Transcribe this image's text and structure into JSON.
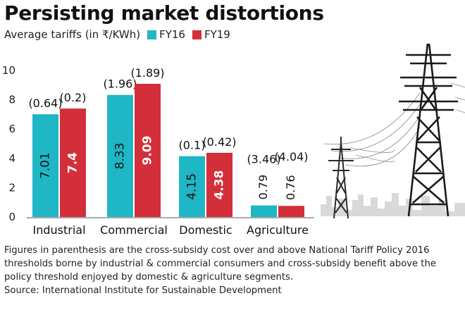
{
  "title": "Persisting market distortions",
  "legend": {
    "prefix": "Average tariffs (in ₹/KWh)",
    "items": [
      {
        "label": "FY16",
        "color": "#1fb6c6"
      },
      {
        "label": "FY19",
        "color": "#d32f3a"
      }
    ]
  },
  "chart_data": {
    "type": "bar",
    "categories": [
      "Industrial",
      "Commercial",
      "Domestic",
      "Agriculture"
    ],
    "series": [
      {
        "name": "FY16",
        "color": "#1fb6c6",
        "values": [
          7.01,
          8.33,
          4.15,
          0.79
        ],
        "labels": [
          "7.01",
          "8.33",
          "4.15",
          "0.79"
        ],
        "annotations": [
          "(0.64)",
          "(1.96)",
          "(0.1)",
          "(3.46)"
        ]
      },
      {
        "name": "FY19",
        "color": "#d32f3a",
        "values": [
          7.4,
          9.09,
          4.38,
          0.76
        ],
        "labels": [
          "7.4",
          "9.09",
          "4.38",
          "0.76"
        ],
        "annotations": [
          "(0.2)",
          "(1.89)",
          "(0.42)",
          "(4.04)"
        ]
      }
    ],
    "ylim": [
      0,
      10
    ],
    "yticks": [
      "0",
      "2",
      "4",
      "6",
      "8",
      "10"
    ],
    "xlabel": "",
    "ylabel": "",
    "grid": false
  },
  "footnote": {
    "text": "Figures in parenthesis are the cross-subsidy cost over and above National Tariff Policy 2016 thresholds borne by industrial & commercial consumers and cross-subsidy benefit above the policy threshold enjoyed by domestic & agriculture segments.",
    "source": "Source: International Institute for Sustainable Development"
  }
}
